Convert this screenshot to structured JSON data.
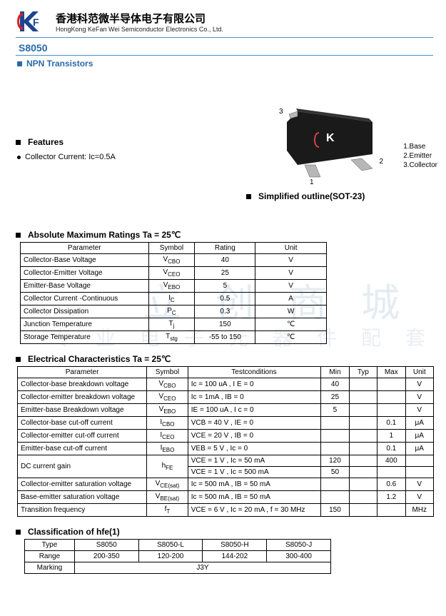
{
  "header": {
    "company_cn": "香港科范微半导体电子有限公司",
    "company_en": "HongKong KeFan Wei Semiconductor Electronics Co., Ltd.",
    "logo_text": "KF",
    "logo_color_red": "#d62027",
    "logo_color_blue": "#1b458f"
  },
  "part_number": "S8050",
  "subtitle": "NPN Transistors",
  "features": {
    "heading": "Features",
    "items": [
      "Collector Current: Ic=0.5A"
    ]
  },
  "package": {
    "heading": "Simplified outline(SOT-23)",
    "pin1": "1",
    "pin2": "2",
    "pin3": "3",
    "legend1": "1.Base",
    "legend2": "2.Emitter",
    "legend3": "3.Collector",
    "body_color": "#1a1a1a",
    "lead_color": "#b7b7b7"
  },
  "abs_max": {
    "heading": "Absolute Maximum Ratings Ta = 25℃",
    "cols": [
      "Parameter",
      "Symbol",
      "Rating",
      "Unit"
    ],
    "rows": [
      {
        "p": "Collector-Base Voltage",
        "s": "V",
        "ss": "CBO",
        "r": "40",
        "u": "V"
      },
      {
        "p": "Collector-Emitter Voltage",
        "s": "V",
        "ss": "CEO",
        "r": "25",
        "u": "V"
      },
      {
        "p": "Emitter-Base Voltage",
        "s": "V",
        "ss": "EBO",
        "r": "5",
        "u": "V"
      },
      {
        "p": "Collector Current -Continuous",
        "s": "I",
        "ss": "C",
        "r": "0.5",
        "u": "A"
      },
      {
        "p": "Collector Dissipation",
        "s": "P",
        "ss": "C",
        "r": "0.3",
        "u": "W"
      },
      {
        "p": "Junction Temperature",
        "s": "T",
        "ss": "j",
        "r": "150",
        "u": "℃"
      },
      {
        "p": "Storage Temperature",
        "s": "T",
        "ss": "stg",
        "r": "-55 to 150",
        "u": "℃"
      }
    ]
  },
  "elec": {
    "heading": "Electrical Characteristics Ta = 25℃",
    "cols": [
      "Parameter",
      "Symbol",
      "Testconditions",
      "Min",
      "Typ",
      "Max",
      "Unit"
    ],
    "rows": [
      {
        "p": "Collector-base breakdown voltage",
        "s": "V",
        "ss": "CBO",
        "c": "Ic = 100 uA , I E = 0",
        "min": "40",
        "typ": "",
        "max": "",
        "u": "V"
      },
      {
        "p": "Collector-emitter breakdown voltage",
        "s": "V",
        "ss": "CEO",
        "c": "Ic = 1mA , IB = 0",
        "min": "25",
        "typ": "",
        "max": "",
        "u": "V"
      },
      {
        "p": "Emitter-base Breakdown voltage",
        "s": "V",
        "ss": "EBO",
        "c": "IE = 100 uA , I c = 0",
        "min": "5",
        "typ": "",
        "max": "",
        "u": "V"
      },
      {
        "p": "Collector-base cut-off current",
        "s": "I",
        "ss": "CBO",
        "c": "VCB = 40 V , IE = 0",
        "min": "",
        "typ": "",
        "max": "0.1",
        "u": "μA"
      },
      {
        "p": "Collector-emitter cut-off current",
        "s": "I",
        "ss": "CEO",
        "c": "VCE = 20 V , IB = 0",
        "min": "",
        "typ": "",
        "max": "1",
        "u": "μA"
      },
      {
        "p": "Emitter-base cut-off current",
        "s": "I",
        "ss": "EBO",
        "c": "VEB = 5 V , Ic = 0",
        "min": "",
        "typ": "",
        "max": "0.1",
        "u": "μA"
      }
    ],
    "gain_label": "DC current gain",
    "gain_sym": "h",
    "gain_ss": "FE",
    "gain_r1": {
      "c": "VCE = 1 V , Ic = 50 mA",
      "min": "120",
      "typ": "",
      "max": "400",
      "u": ""
    },
    "gain_r2": {
      "c": "VCE = 1 V , Ic = 500 mA",
      "min": "50",
      "typ": "",
      "max": "",
      "u": ""
    },
    "rows2": [
      {
        "p": "Collector-emitter saturation voltage",
        "s": "V",
        "ss": "CE(sat)",
        "c": "Ic = 500 mA , IB = 50 mA",
        "min": "",
        "typ": "",
        "max": "0.6",
        "u": "V"
      },
      {
        "p": "Base-emitter saturation voltage",
        "s": "V",
        "ss": "BE(sat)",
        "c": "Ic = 500 mA , IB = 50 mA",
        "min": "",
        "typ": "",
        "max": "1.2",
        "u": "V"
      },
      {
        "p": "Transition frequency",
        "s": "f",
        "ss": "T",
        "c": "VCE = 6 V , Ic = 20 mA , f = 30 MHz",
        "min": "150",
        "typ": "",
        "max": "",
        "u": "MHz"
      }
    ]
  },
  "classif": {
    "heading": "Classification of hfe(1)",
    "type_label": "Type",
    "range_label": "Range",
    "marking_label": "Marking",
    "types": [
      "S8050",
      "S8050-L",
      "S8050-H",
      "S8050-J"
    ],
    "ranges": [
      "200-350",
      "120-200",
      "144-202",
      "300-400"
    ],
    "marking": "J3Y"
  },
  "watermark1": "立创商城",
  "watermark2": "专业电子元器件配套"
}
